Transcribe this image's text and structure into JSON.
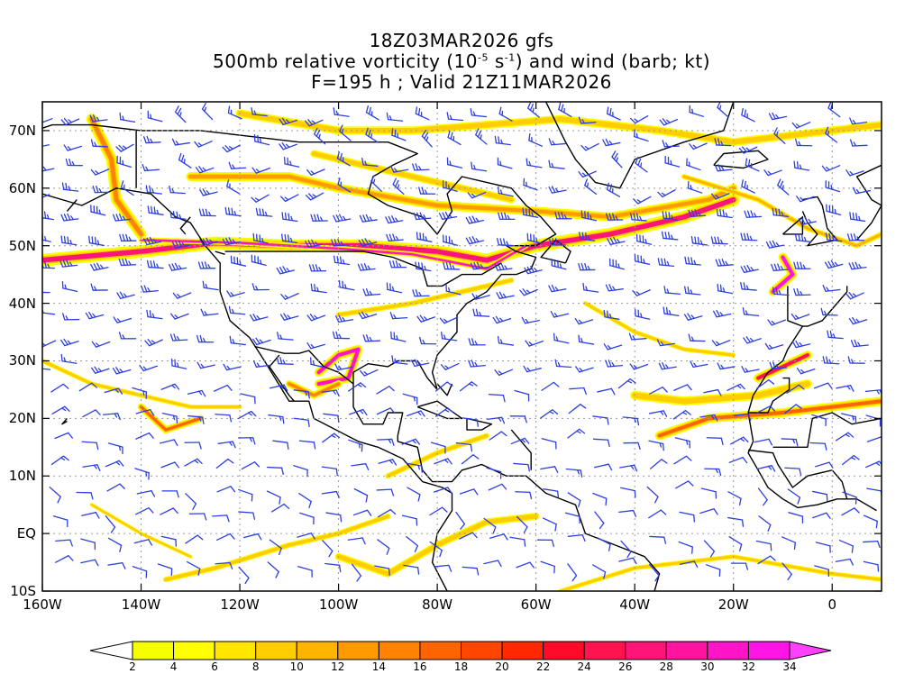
{
  "title": {
    "line1": "18Z03MAR2026 gfs",
    "line2_pre": "500mb relative vorticity (10",
    "line2_sup1": "-5",
    "line2_mid": " s",
    "line2_sup2": "-1",
    "line2_post": ") and wind (barb; kt)",
    "line3": "F=195 h ; Valid 21Z11MAR2026"
  },
  "map": {
    "region": "North Atlantic / North America",
    "lat_labels": [
      {
        "text": "70N",
        "value": 70
      },
      {
        "text": "60N",
        "value": 60
      },
      {
        "text": "50N",
        "value": 50
      },
      {
        "text": "40N",
        "value": 40
      },
      {
        "text": "30N",
        "value": 30
      },
      {
        "text": "20N",
        "value": 20
      },
      {
        "text": "10N",
        "value": 10
      },
      {
        "text": "EQ",
        "value": 0
      },
      {
        "text": "10S",
        "value": -10
      }
    ],
    "lon_labels": [
      {
        "text": "160W",
        "value": -160
      },
      {
        "text": "140W",
        "value": -140
      },
      {
        "text": "120W",
        "value": -120
      },
      {
        "text": "100W",
        "value": -100
      },
      {
        "text": "80W",
        "value": -80
      },
      {
        "text": "60W",
        "value": -60
      },
      {
        "text": "40W",
        "value": -40
      },
      {
        "text": "20W",
        "value": -20
      },
      {
        "text": "0",
        "value": 0
      }
    ],
    "vorticity_fill_color_low": "#f0f000",
    "vorticity_fill_color_high": "#ff00ff",
    "barb_color": "#2d3fe0"
  },
  "colorbar": {
    "labels": [
      "2",
      "4",
      "6",
      "8",
      "10",
      "12",
      "14",
      "16",
      "18",
      "20",
      "22",
      "24",
      "26",
      "28",
      "30",
      "32",
      "34"
    ],
    "colors": [
      "#f5ff00",
      "#ffff00",
      "#ffe600",
      "#ffcd00",
      "#ffb400",
      "#ff9b00",
      "#ff8200",
      "#ff6400",
      "#ff4600",
      "#ff2800",
      "#ff0a28",
      "#ff1450",
      "#ff1478",
      "#ff14a0",
      "#ff14c8",
      "#ff14e6"
    ],
    "over_color": "#ff40ff",
    "under_color": "#ffffff"
  }
}
